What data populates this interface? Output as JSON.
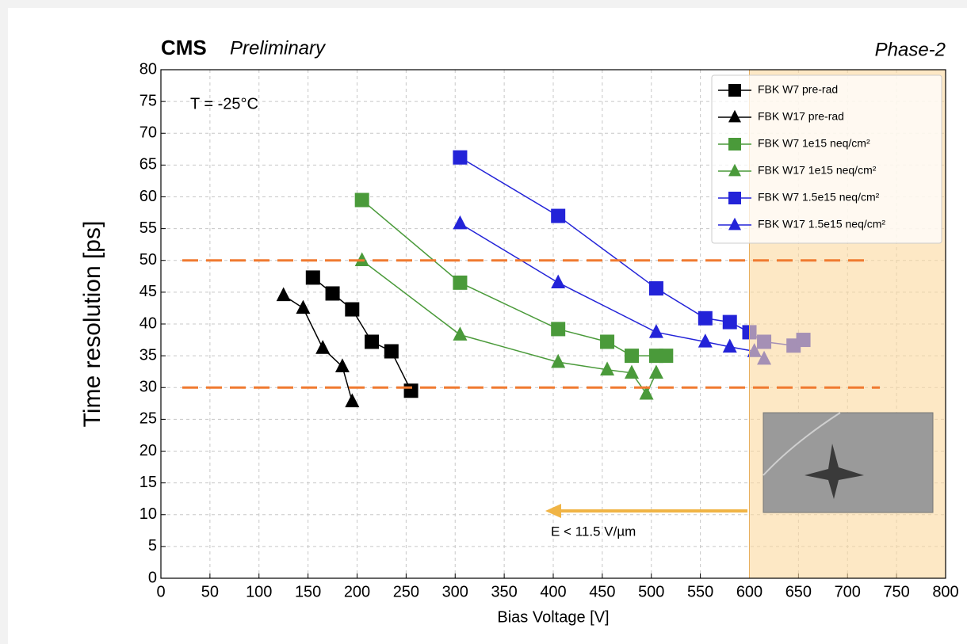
{
  "chart_data": {
    "type": "line",
    "title": "CMS",
    "subtitle": "Preliminary",
    "right_title": "Phase-2",
    "annotations": [
      "T = -25°C",
      "E < 11.5 V/µm"
    ],
    "x_label": "Bias Voltage [V]",
    "y_label": "Time resolution [ps]",
    "xlim": [
      0,
      800
    ],
    "ylim": [
      0,
      80
    ],
    "xticks": [
      0,
      50,
      100,
      150,
      200,
      250,
      300,
      350,
      400,
      450,
      500,
      550,
      600,
      650,
      700,
      750,
      800
    ],
    "yticks": [
      0,
      5,
      10,
      15,
      20,
      25,
      30,
      35,
      40,
      45,
      50,
      55,
      60,
      65,
      70,
      75,
      80
    ],
    "grid": true,
    "legend": "upper right",
    "hlines": [
      50,
      30
    ],
    "hline_color": "#f07a30",
    "shaded_xrange": [
      600,
      800
    ],
    "shade_color": "#fbd89e",
    "series": [
      {
        "name": "FBK W7 pre-rad",
        "color": "#000000",
        "marker": "square",
        "x": [
          155,
          175,
          195,
          215,
          235,
          255
        ],
        "values": [
          47.3,
          44.8,
          42.3,
          37.2,
          35.7,
          29.5
        ]
      },
      {
        "name": "FBK W17 pre-rad",
        "color": "#000000",
        "marker": "triangle",
        "x": [
          125,
          145,
          165,
          185,
          195
        ],
        "values": [
          44.5,
          42.5,
          36.2,
          33.3,
          27.8
        ]
      },
      {
        "name": "FBK W7 1e15 neq/cm²",
        "color": "#4a9a3a",
        "marker": "square",
        "x": [
          205,
          305,
          405,
          455,
          480,
          505,
          515
        ],
        "values": [
          59.5,
          46.5,
          39.2,
          37.2,
          35,
          35,
          35
        ]
      },
      {
        "name": "FBK W17 1e15 neq/cm²",
        "color": "#4a9a3a",
        "marker": "triangle",
        "x": [
          205,
          305,
          405,
          455,
          480,
          495,
          505
        ],
        "values": [
          50,
          38.3,
          34,
          32.8,
          32.3,
          29,
          32.3
        ]
      },
      {
        "name": "FBK W7 1.5e15 neq/cm²",
        "color": "#2323d8",
        "marker": "square",
        "x": [
          305,
          405,
          505,
          555,
          580,
          600,
          615,
          645,
          655
        ],
        "values": [
          66.2,
          57,
          45.6,
          40.9,
          40.3,
          38.7,
          37.2,
          36.6,
          37.5
        ]
      },
      {
        "name": "FBK W17 1.5e15 neq/cm²",
        "color": "#2323d8",
        "marker": "triangle",
        "x": [
          305,
          405,
          505,
          555,
          580,
          605,
          615
        ],
        "values": [
          55.8,
          46.5,
          38.7,
          37.2,
          36.4,
          35.7,
          34.5
        ]
      }
    ]
  }
}
